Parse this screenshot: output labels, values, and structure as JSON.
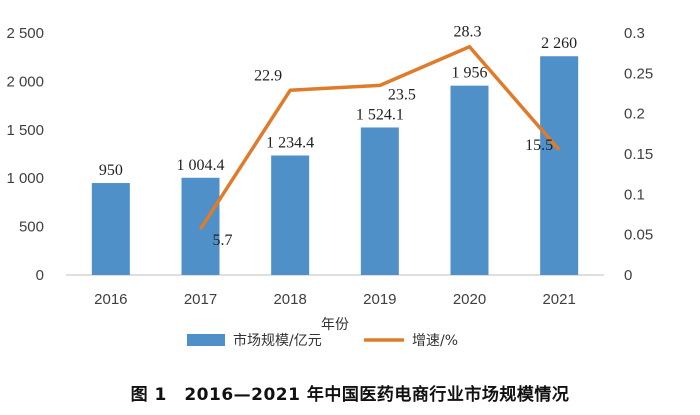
{
  "chart_data": {
    "type": "bar",
    "categories": [
      "2016",
      "2017",
      "2018",
      "2019",
      "2020",
      "2021"
    ],
    "series": [
      {
        "name": "市场规模/亿元",
        "type": "bar",
        "axis": "left",
        "color": "#4f90c8",
        "values": [
          950,
          1004.4,
          1234.4,
          1524.1,
          1956,
          2260
        ],
        "labels": [
          "950",
          "1 004.4",
          "1 234.4",
          "1 524.1",
          "1 956",
          "2 260"
        ]
      },
      {
        "name": "增速/%",
        "type": "line",
        "axis": "right",
        "color": "#e07b2a",
        "values": [
          null,
          0.057,
          0.229,
          0.235,
          0.283,
          0.155
        ],
        "labels": [
          null,
          "5.7",
          "22.9",
          "23.5",
          "28.3",
          "15.5"
        ]
      }
    ],
    "xlabel": "年份",
    "ylim_left": [
      0,
      2500
    ],
    "yticks_left": [
      "0",
      "500",
      "1 000",
      "1 500",
      "2 000",
      "2 500"
    ],
    "ylim_right": [
      0,
      0.3
    ],
    "yticks_right": [
      "0",
      "0.05",
      "0.1",
      "0.15",
      "0.2",
      "0.25",
      "0.3"
    ],
    "grid": false,
    "legend_position": "bottom"
  },
  "caption": "图 1　2016—2021 年中国医药电商行业市场规模情况"
}
